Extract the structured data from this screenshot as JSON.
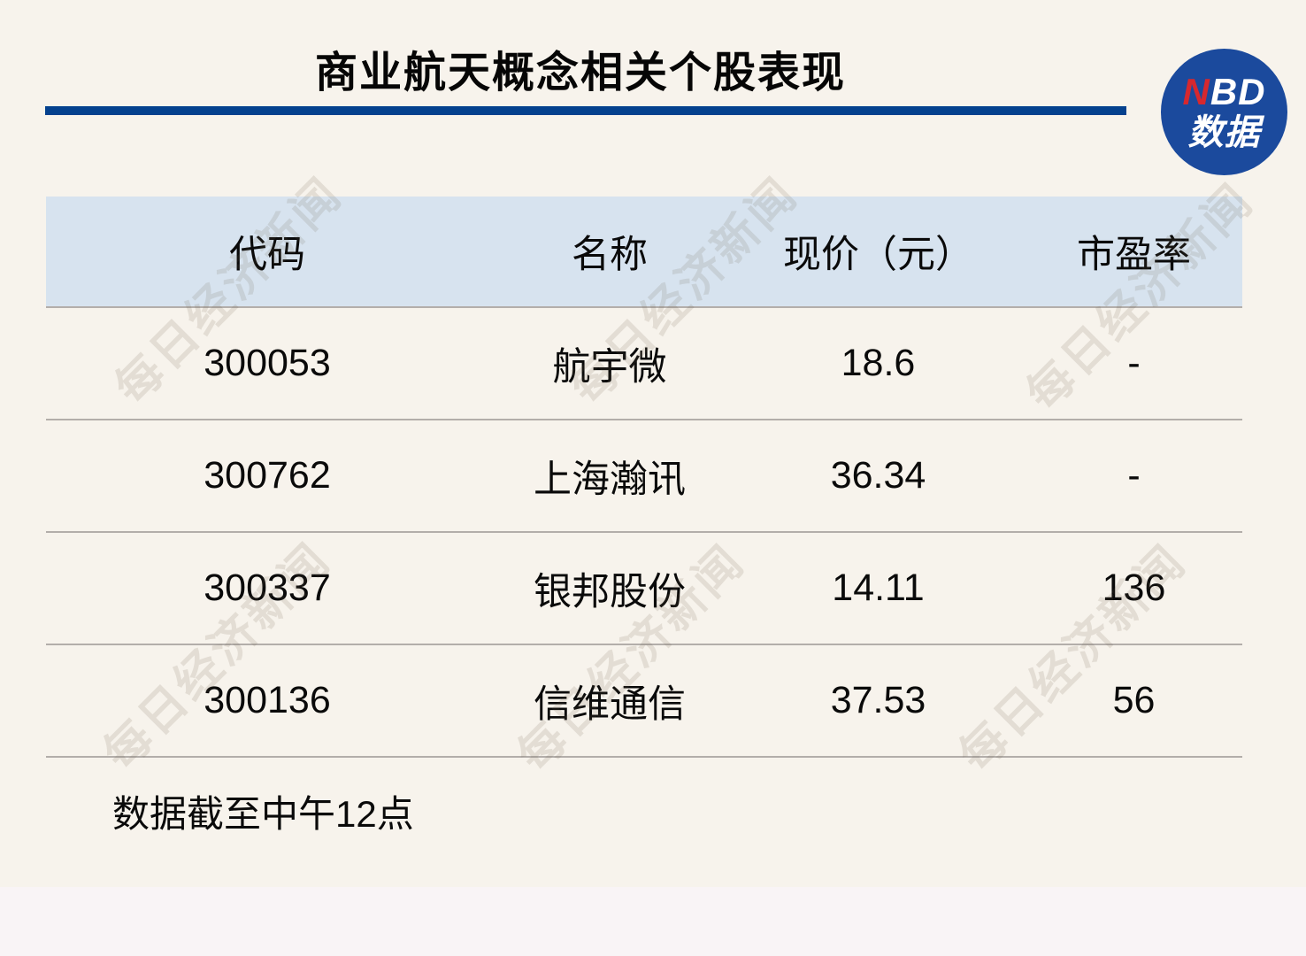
{
  "page": {
    "background_color": "#f7f3ec",
    "bottom_band_color": "#f9f4f6"
  },
  "header": {
    "title": "商业航天概念相关个股表现",
    "underline_color": "#04418e"
  },
  "logo": {
    "text_line1_accent": "N",
    "text_line1_rest": "BD",
    "text_line2": "数据",
    "background_color": "#1b4a9d",
    "accent_color": "#d6282e",
    "text_color": "#ffffff"
  },
  "watermark": {
    "text": "每日经济新闻"
  },
  "table": {
    "header_bg_color": "#d7e3ef",
    "border_color": "#b3aeaa",
    "columns": [
      {
        "key": "code",
        "label": "代码"
      },
      {
        "key": "name",
        "label": "名称"
      },
      {
        "key": "price",
        "label": "现价（元）"
      },
      {
        "key": "pe",
        "label": "市盈率"
      }
    ],
    "rows": [
      {
        "code": "300053",
        "name": "航宇微",
        "price": "18.6",
        "pe": "-"
      },
      {
        "code": "300762",
        "name": "上海瀚讯",
        "price": "36.34",
        "pe": "-"
      },
      {
        "code": "300337",
        "name": "银邦股份",
        "price": "14.11",
        "pe": "136"
      },
      {
        "code": "300136",
        "name": "信维通信",
        "price": "37.53",
        "pe": "56"
      }
    ]
  },
  "footer": {
    "note": "数据截至中午12点"
  },
  "chart_data": {
    "type": "table",
    "title": "商业航天概念相关个股表现",
    "columns": [
      "代码",
      "名称",
      "现价（元）",
      "市盈率"
    ],
    "rows": [
      [
        "300053",
        "航宇微",
        18.6,
        "-"
      ],
      [
        "300762",
        "上海瀚讯",
        36.34,
        "-"
      ],
      [
        "300337",
        "银邦股份",
        14.11,
        136
      ],
      [
        "300136",
        "信维通信",
        37.53,
        56
      ]
    ],
    "note": "数据截至中午12点"
  }
}
